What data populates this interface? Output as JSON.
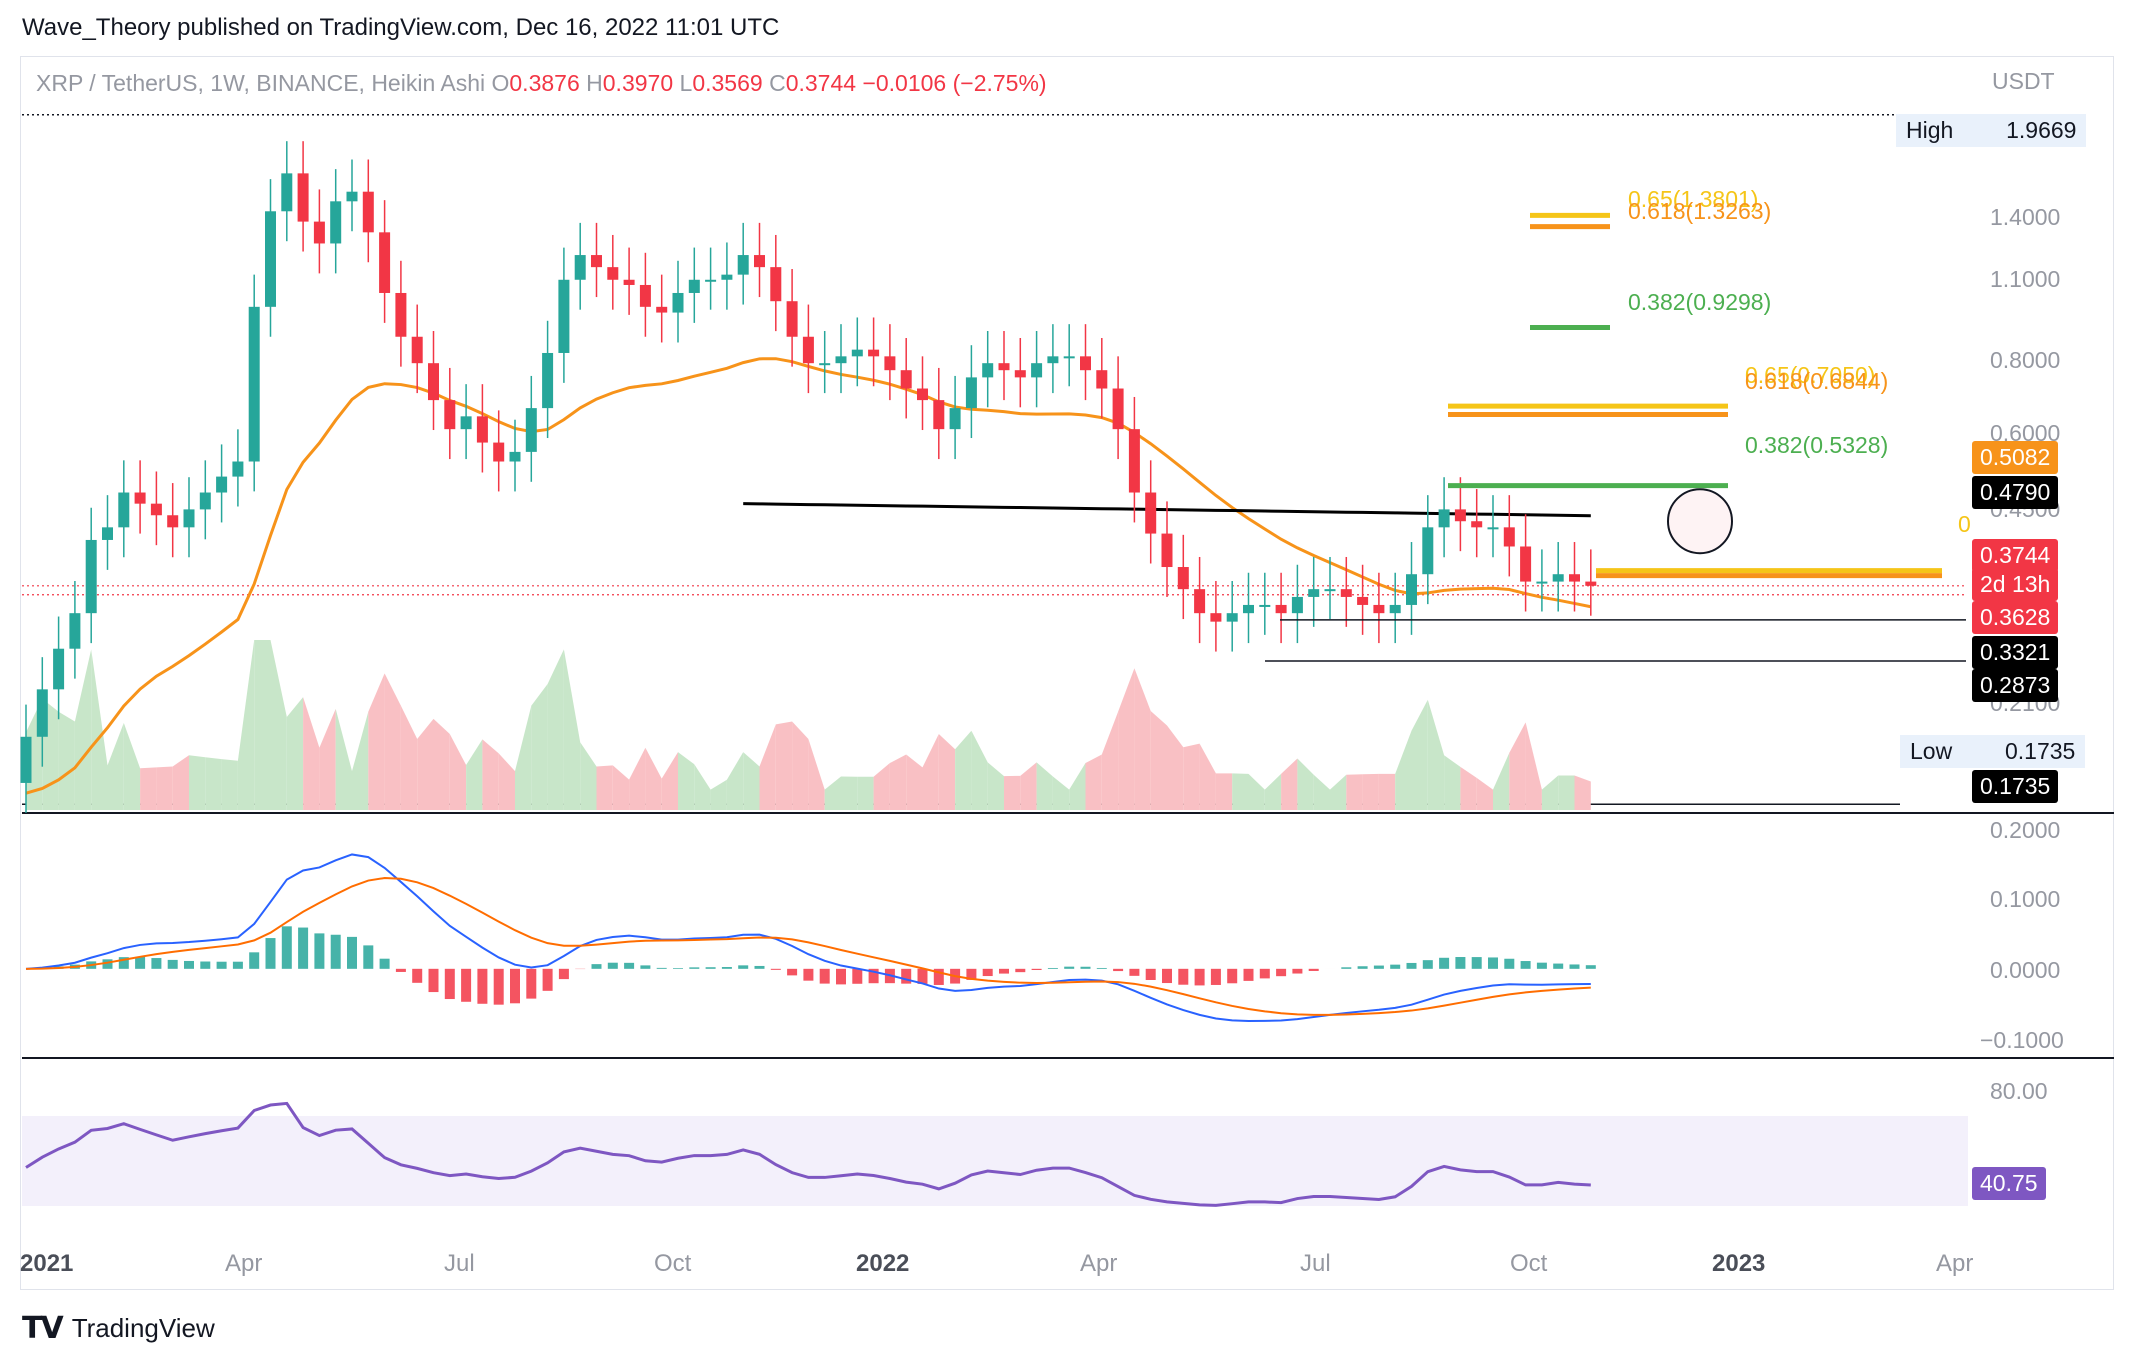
{
  "publisher": {
    "text": "Wave_Theory published on TradingView.com, Dec 16, 2022 11:01 UTC"
  },
  "legend": {
    "symbol": "XRP / TetherUS, 1W, BINANCE, Heikin Ashi",
    "o_label": "O",
    "o_value": "0.3876",
    "h_label": "H",
    "h_value": "0.3970",
    "l_label": "L",
    "l_value": "0.3569",
    "c_label": "C",
    "c_value": "0.3744",
    "change": "−0.0106 (−2.75%)"
  },
  "price_axis": {
    "currency": "USDT",
    "ticks": [
      "1.4000",
      "1.1000",
      "0.8000",
      "0.6000",
      "0.4500",
      "0.2100"
    ],
    "high_label": "High",
    "high_value": "1.9669",
    "low_label": "Low",
    "low_value": "0.1735",
    "badges": [
      {
        "text": "0.5082",
        "bg": "#f7931a",
        "fg": "#ffffff"
      },
      {
        "text": "0.4790",
        "bg": "#000000",
        "fg": "#ffffff"
      },
      {
        "text": "0.3744",
        "bg": "#f23645",
        "fg": "#ffffff"
      },
      {
        "text": "2d 13h",
        "bg": "#f23645",
        "fg": "#ffffff"
      },
      {
        "text": "0.3628",
        "bg": "#f23645",
        "fg": "#ffffff"
      },
      {
        "text": "0.3321",
        "bg": "#000000",
        "fg": "#ffffff"
      },
      {
        "text": "0.2873",
        "bg": "#000000",
        "fg": "#ffffff"
      },
      {
        "text": "0.1735",
        "bg": "#000000",
        "fg": "#ffffff"
      }
    ]
  },
  "fib_labels": {
    "upper_065": "0.65(1.3801)",
    "upper_0618": "0.618(1.3263)",
    "upper_0382": "0.382(0.9298)",
    "mid_065": "0.65(0.7050)",
    "mid_0618": "0.618(0.6844)",
    "lower_0382": "0.382(0.5328)",
    "edge_zero": "0"
  },
  "macd_axis": {
    "ticks": [
      "0.2000",
      "0.1000",
      "0.0000",
      "−0.1000"
    ]
  },
  "rsi_axis": {
    "tick": "80.00",
    "badge": "40.75"
  },
  "time_axis": {
    "labels": [
      "2021",
      "Apr",
      "Jul",
      "Oct",
      "2022",
      "Apr",
      "Jul",
      "Oct",
      "2023",
      "Apr"
    ],
    "bold": [
      true,
      false,
      false,
      false,
      true,
      false,
      false,
      false,
      true,
      false
    ]
  },
  "footer": {
    "logo_mark": "TV",
    "brand": "TradingView"
  },
  "colors": {
    "up": "#26a69a",
    "down": "#f23645",
    "ema": "#f7931a",
    "sma": "#000000",
    "fib_gold": "#f5c518",
    "fib_orange": "#f7931a",
    "fib_green": "#4caf50",
    "macd": "#2962ff",
    "signal": "#ff6d00",
    "rsi": "#7e57c2"
  },
  "chart_data": {
    "type": "candlestick",
    "title": "XRP / TetherUS, 1W, BINANCE, Heikin Ashi",
    "ylim_log": [
      0.17,
      2.0
    ],
    "weekly_close": [
      0.22,
      0.26,
      0.3,
      0.34,
      0.44,
      0.46,
      0.52,
      0.5,
      0.48,
      0.46,
      0.49,
      0.52,
      0.55,
      0.58,
      1.0,
      1.4,
      1.6,
      1.35,
      1.25,
      1.45,
      1.5,
      1.3,
      1.05,
      0.9,
      0.82,
      0.72,
      0.65,
      0.68,
      0.62,
      0.58,
      0.6,
      0.7,
      0.85,
      1.1,
      1.2,
      1.15,
      1.1,
      1.08,
      1.0,
      0.98,
      1.05,
      1.1,
      1.1,
      1.12,
      1.2,
      1.15,
      1.02,
      0.9,
      0.82,
      0.82,
      0.84,
      0.86,
      0.84,
      0.8,
      0.75,
      0.72,
      0.65,
      0.7,
      0.78,
      0.82,
      0.8,
      0.78,
      0.82,
      0.84,
      0.84,
      0.8,
      0.75,
      0.65,
      0.52,
      0.45,
      0.4,
      0.37,
      0.34,
      0.33,
      0.34,
      0.35,
      0.35,
      0.34,
      0.36,
      0.37,
      0.37,
      0.36,
      0.35,
      0.34,
      0.35,
      0.39,
      0.46,
      0.49,
      0.47,
      0.46,
      0.46,
      0.43,
      0.38,
      0.38,
      0.39,
      0.38,
      0.3744
    ],
    "ema_series_name": "",
    "sma_series_name": "",
    "levels": [
      1.3801,
      1.3263,
      0.9298,
      0.705,
      0.6844,
      0.5328,
      0.5082,
      0.479,
      0.3744,
      0.3628,
      0.3321,
      0.2873,
      0.1735
    ],
    "high": 1.9669,
    "low": 0.1735,
    "macd_ylim": [
      -0.12,
      0.22
    ],
    "rsi_last": 40.75
  }
}
